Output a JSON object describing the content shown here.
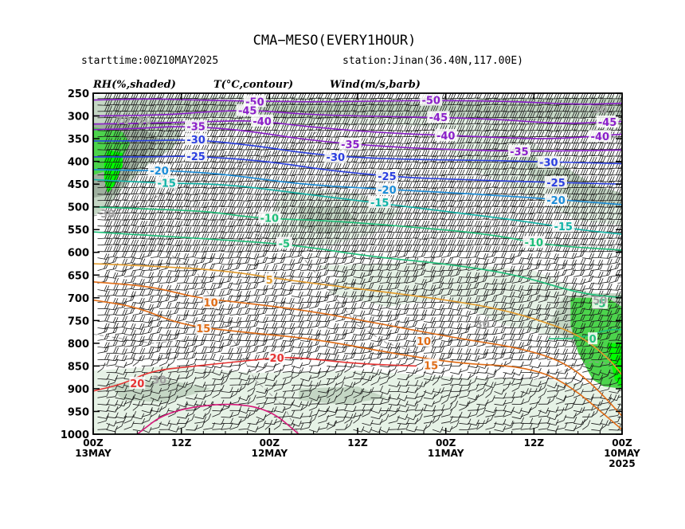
{
  "header": {
    "title": "CMA−MESO(EVERY1HOUR)",
    "starttime": "starttime:00Z10MAY2025",
    "station": "station:Jinan(36.40N,117.00E)"
  },
  "legend": {
    "rh": "RH(%,shaded)",
    "temp": "T(°C,contour)",
    "wind": "Wind(m/s,barb)"
  },
  "colors": {
    "rh_light": "#e6f2e6",
    "rh_mid": "#c4d6c4",
    "rh_dark": "#9fb09f",
    "rh_green": "#4cd44c",
    "rh_bright": "#00ff00",
    "purple": "#8a1fc9",
    "blue": "#2b3fe0",
    "sky": "#1a8cd8",
    "teal": "#12b4a8",
    "green": "#1fbf7a",
    "orange": "#e39b2c",
    "dorange": "#e06c16",
    "red": "#e63333",
    "magenta": "#d6197a"
  },
  "chart_data": {
    "type": "heatmap",
    "title": "CMA−MESO(EVERY1HOUR)",
    "y_axis": {
      "label": "",
      "inverted": true,
      "range": [
        1000,
        250
      ],
      "ticks": [
        250,
        300,
        350,
        400,
        450,
        500,
        550,
        600,
        650,
        700,
        750,
        800,
        850,
        900,
        950,
        1000
      ]
    },
    "x_axis": {
      "label": "",
      "direction": "time decreasing to the right",
      "range_hours_before_end": [
        72,
        0
      ],
      "ticks": [
        {
          "line1": "00Z",
          "line2": "13MAY",
          "line3": ""
        },
        {
          "line1": "12Z",
          "line2": "",
          "line3": ""
        },
        {
          "line1": "00Z",
          "line2": "12MAY",
          "line3": ""
        },
        {
          "line1": "12Z",
          "line2": "",
          "line3": ""
        },
        {
          "line1": "00Z",
          "line2": "11MAY",
          "line3": ""
        },
        {
          "line1": "12Z",
          "line2": "",
          "line3": ""
        },
        {
          "line1": "00Z",
          "line2": "10MAY",
          "line3": "2025"
        }
      ]
    },
    "temperature_contours": [
      {
        "value": -50,
        "color": "purple",
        "points": [
          [
            0,
            265
          ],
          [
            8,
            262
          ],
          [
            16,
            266
          ],
          [
            24,
            268
          ],
          [
            32,
            269
          ],
          [
            44,
            266
          ],
          [
            56,
            267
          ],
          [
            66,
            275
          ],
          [
            72,
            272
          ]
        ],
        "labels": [
          {
            "text": "-50",
            "x": 22,
            "p": 268
          },
          {
            "text": "-50",
            "x": 46,
            "p": 265
          }
        ]
      },
      {
        "value": -45,
        "color": "purple",
        "points": [
          [
            0,
            300
          ],
          [
            10,
            298
          ],
          [
            16,
            290
          ],
          [
            22,
            287
          ],
          [
            30,
            298
          ],
          [
            42,
            302
          ],
          [
            54,
            306
          ],
          [
            64,
            318
          ],
          [
            72,
            312
          ]
        ],
        "labels": [
          {
            "text": "-45",
            "x": 21,
            "p": 288
          },
          {
            "text": "-45",
            "x": 47,
            "p": 303
          },
          {
            "text": "-45",
            "x": 70,
            "p": 313
          }
        ]
      },
      {
        "value": -40,
        "color": "purple",
        "points": [
          [
            0,
            318
          ],
          [
            10,
            315
          ],
          [
            16,
            312
          ],
          [
            22,
            310
          ],
          [
            30,
            325
          ],
          [
            40,
            338
          ],
          [
            52,
            345
          ],
          [
            62,
            352
          ],
          [
            72,
            340
          ]
        ],
        "labels": [
          {
            "text": "-40",
            "x": 23,
            "p": 311
          },
          {
            "text": "-40",
            "x": 48,
            "p": 343
          },
          {
            "text": "-40",
            "x": 69,
            "p": 345
          }
        ]
      },
      {
        "value": -35,
        "color": "purple",
        "points": [
          [
            0,
            330
          ],
          [
            6,
            328
          ],
          [
            12,
            322
          ],
          [
            20,
            330
          ],
          [
            30,
            355
          ],
          [
            40,
            368
          ],
          [
            50,
            375
          ],
          [
            60,
            378
          ],
          [
            72,
            375
          ]
        ],
        "labels": [
          {
            "text": "-35",
            "x": 14,
            "p": 323
          },
          {
            "text": "-35",
            "x": 35,
            "p": 362
          },
          {
            "text": "-35",
            "x": 58,
            "p": 378
          }
        ]
      },
      {
        "value": -30,
        "color": "blue",
        "points": [
          [
            0,
            355
          ],
          [
            6,
            355
          ],
          [
            14,
            352
          ],
          [
            22,
            365
          ],
          [
            30,
            385
          ],
          [
            40,
            395
          ],
          [
            50,
            397
          ],
          [
            60,
            400
          ],
          [
            72,
            405
          ]
        ],
        "labels": [
          {
            "text": "-30",
            "x": 14,
            "p": 352
          },
          {
            "text": "-30",
            "x": 33,
            "p": 390
          },
          {
            "text": "-30",
            "x": 62,
            "p": 402
          }
        ]
      },
      {
        "value": -25,
        "color": "blue",
        "points": [
          [
            0,
            390
          ],
          [
            8,
            390
          ],
          [
            14,
            388
          ],
          [
            24,
            400
          ],
          [
            32,
            420
          ],
          [
            42,
            435
          ],
          [
            50,
            440
          ],
          [
            60,
            445
          ],
          [
            72,
            450
          ]
        ],
        "labels": [
          {
            "text": "-25",
            "x": 14,
            "p": 388
          },
          {
            "text": "-25",
            "x": 40,
            "p": 432
          },
          {
            "text": "-25",
            "x": 63,
            "p": 446
          }
        ]
      },
      {
        "value": -20,
        "color": "sky",
        "points": [
          [
            0,
            418
          ],
          [
            6,
            420
          ],
          [
            10,
            420
          ],
          [
            18,
            428
          ],
          [
            28,
            450
          ],
          [
            38,
            460
          ],
          [
            50,
            470
          ],
          [
            60,
            480
          ],
          [
            72,
            495
          ]
        ],
        "labels": [
          {
            "text": "-20",
            "x": 9,
            "p": 420
          },
          {
            "text": "-20",
            "x": 40,
            "p": 462
          },
          {
            "text": "-20",
            "x": 63,
            "p": 485
          }
        ]
      },
      {
        "value": -15,
        "color": "teal",
        "points": [
          [
            0,
            440
          ],
          [
            6,
            445
          ],
          [
            10,
            448
          ],
          [
            18,
            450
          ],
          [
            28,
            470
          ],
          [
            38,
            490
          ],
          [
            48,
            510
          ],
          [
            58,
            530
          ],
          [
            66,
            550
          ],
          [
            72,
            560
          ]
        ],
        "labels": [
          {
            "text": "-15",
            "x": 10,
            "p": 447
          },
          {
            "text": "-15",
            "x": 39,
            "p": 490
          },
          {
            "text": "-15",
            "x": 64,
            "p": 543
          }
        ]
      },
      {
        "value": -10,
        "color": "green",
        "points": [
          [
            0,
            500
          ],
          [
            8,
            505
          ],
          [
            16,
            510
          ],
          [
            22,
            525
          ],
          [
            32,
            530
          ],
          [
            44,
            545
          ],
          [
            54,
            560
          ],
          [
            62,
            585
          ],
          [
            72,
            595
          ]
        ],
        "labels": [
          {
            "text": "-10",
            "x": 24,
            "p": 524
          },
          {
            "text": "-10",
            "x": 60,
            "p": 578
          }
        ]
      },
      {
        "value": -5,
        "color": "green",
        "points": [
          [
            0,
            555
          ],
          [
            10,
            565
          ],
          [
            20,
            575
          ],
          [
            28,
            585
          ],
          [
            38,
            610
          ],
          [
            48,
            625
          ],
          [
            58,
            650
          ],
          [
            66,
            690
          ],
          [
            72,
            700
          ]
        ],
        "labels": [
          {
            "text": "-5",
            "x": 26,
            "p": 580
          },
          {
            "text": "-5",
            "x": 69,
            "p": 712
          }
        ]
      },
      {
        "value": 0,
        "color": "green",
        "points": [
          [
            62,
            790
          ],
          [
            66,
            790
          ],
          [
            70,
            770
          ],
          [
            72,
            770
          ]
        ],
        "labels": [
          {
            "text": "0",
            "x": 68,
            "p": 790
          }
        ]
      },
      {
        "value": 5,
        "color": "orange",
        "points": [
          [
            0,
            625
          ],
          [
            8,
            630
          ],
          [
            18,
            640
          ],
          [
            26,
            660
          ],
          [
            36,
            680
          ],
          [
            46,
            700
          ],
          [
            54,
            720
          ],
          [
            60,
            745
          ],
          [
            66,
            780
          ],
          [
            70,
            830
          ],
          [
            72,
            870
          ]
        ],
        "labels": [
          {
            "text": "5",
            "x": 24,
            "p": 660
          }
        ]
      },
      {
        "value": 10,
        "color": "dorange",
        "points": [
          [
            0,
            665
          ],
          [
            8,
            675
          ],
          [
            14,
            700
          ],
          [
            20,
            710
          ],
          [
            30,
            730
          ],
          [
            40,
            760
          ],
          [
            50,
            790
          ],
          [
            58,
            810
          ],
          [
            64,
            840
          ],
          [
            68,
            890
          ],
          [
            72,
            960
          ]
        ],
        "labels": [
          {
            "text": "10",
            "x": 16,
            "p": 710
          },
          {
            "text": "10",
            "x": 45,
            "p": 795
          }
        ]
      },
      {
        "value": 15,
        "color": "dorange",
        "points": [
          [
            0,
            705
          ],
          [
            6,
            720
          ],
          [
            12,
            760
          ],
          [
            20,
            775
          ],
          [
            30,
            790
          ],
          [
            40,
            820
          ],
          [
            50,
            845
          ],
          [
            58,
            850
          ],
          [
            64,
            880
          ],
          [
            72,
            990
          ]
        ],
        "labels": [
          {
            "text": "15",
            "x": 15,
            "p": 767
          },
          {
            "text": "15",
            "x": 46,
            "p": 848
          }
        ]
      },
      {
        "value": 20,
        "color": "red",
        "points": [
          [
            0,
            905
          ],
          [
            4,
            890
          ],
          [
            8,
            860
          ],
          [
            14,
            850
          ],
          [
            20,
            840
          ],
          [
            26,
            830
          ],
          [
            30,
            835
          ],
          [
            36,
            845
          ],
          [
            44,
            850
          ]
        ],
        "labels": [
          {
            "text": "20",
            "x": 6,
            "p": 888
          },
          {
            "text": "20",
            "x": 25,
            "p": 832
          }
        ]
      },
      {
        "value": 25,
        "color": "magenta",
        "points": [
          [
            6,
            1000
          ],
          [
            10,
            950
          ],
          [
            18,
            930
          ],
          [
            24,
            945
          ],
          [
            28,
            1000
          ]
        ],
        "labels": []
      }
    ],
    "rh_shaded_levels": [
      {
        "min": 30,
        "color": "rh_light"
      },
      {
        "min": 50,
        "color": "rh_mid"
      },
      {
        "min": 70,
        "color": "rh_dark"
      },
      {
        "min": 80,
        "color": "rh_green"
      },
      {
        "min": 90,
        "color": "rh_bright"
      }
    ],
    "rh_labels": [
      {
        "text": "70",
        "x": 4,
        "p": 310
      },
      {
        "text": "50",
        "x": 7,
        "p": 310
      },
      {
        "text": "30",
        "x": 69,
        "p": 285
      },
      {
        "text": "30",
        "x": 2,
        "p": 515
      },
      {
        "text": "50",
        "x": 69,
        "p": 705
      },
      {
        "text": "30",
        "x": 53,
        "p": 757
      },
      {
        "text": "30",
        "x": 9,
        "p": 880
      }
    ],
    "wind_barbs": "dense barbs on the pressure-time grid; westerly to north-westerly in upper levels, weaker in lower levels"
  }
}
